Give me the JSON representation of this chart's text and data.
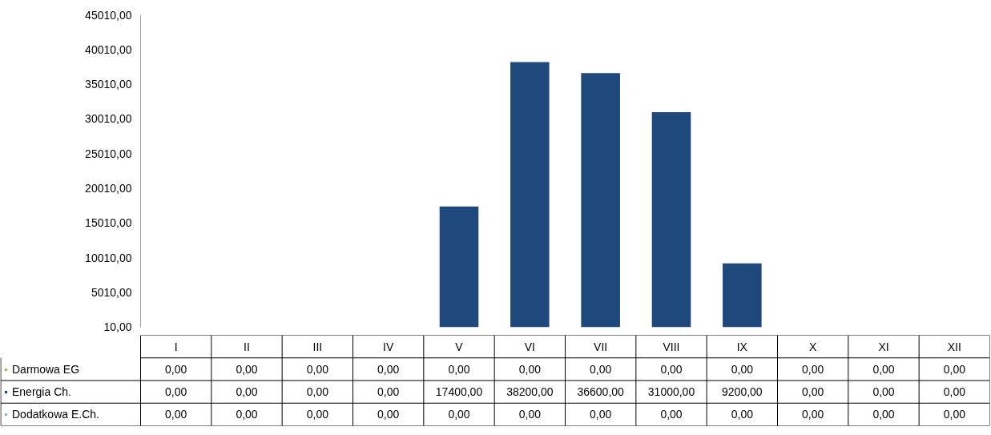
{
  "chart_data": {
    "type": "bar",
    "stacked": true,
    "categories": [
      "I",
      "II",
      "III",
      "IV",
      "V",
      "VI",
      "VII",
      "VIII",
      "IX",
      "X",
      "XI",
      "XII"
    ],
    "series": [
      {
        "name": "Darmowa EG",
        "color": "#9bbb59",
        "values": [
          0,
          0,
          0,
          0,
          0,
          0,
          0,
          0,
          0,
          0,
          0,
          0
        ],
        "value_labels": [
          "0,00",
          "0,00",
          "0,00",
          "0,00",
          "0,00",
          "0,00",
          "0,00",
          "0,00",
          "0,00",
          "0,00",
          "0,00",
          "0,00"
        ]
      },
      {
        "name": "Energia Ch.",
        "color": "#1f497d",
        "values": [
          0,
          0,
          0,
          0,
          17400,
          38200,
          36600,
          31000,
          9200,
          0,
          0,
          0
        ],
        "value_labels": [
          "0,00",
          "0,00",
          "0,00",
          "0,00",
          "17400,00",
          "38200,00",
          "36600,00",
          "31000,00",
          "9200,00",
          "0,00",
          "0,00",
          "0,00"
        ]
      },
      {
        "name": "Dodatkowa E.Ch.",
        "color": "#95b3d7",
        "values": [
          0,
          0,
          0,
          0,
          0,
          0,
          0,
          0,
          0,
          0,
          0,
          0
        ],
        "value_labels": [
          "0,00",
          "0,00",
          "0,00",
          "0,00",
          "0,00",
          "0,00",
          "0,00",
          "0,00",
          "0,00",
          "0,00",
          "0,00",
          "0,00"
        ]
      }
    ],
    "ylim": [
      0,
      45010
    ],
    "yticks": [
      {
        "value": 10,
        "label": "10,00"
      },
      {
        "value": 5010,
        "label": "5010,00"
      },
      {
        "value": 10010,
        "label": "10010,00"
      },
      {
        "value": 15010,
        "label": "15010,00"
      },
      {
        "value": 20010,
        "label": "20010,00"
      },
      {
        "value": 25010,
        "label": "25010,00"
      },
      {
        "value": 30010,
        "label": "30010,00"
      },
      {
        "value": 35010,
        "label": "35010,00"
      },
      {
        "value": 40010,
        "label": "40010,00"
      },
      {
        "value": 45010,
        "label": "45010,00"
      }
    ],
    "grid": false,
    "legend": "bottom left"
  }
}
